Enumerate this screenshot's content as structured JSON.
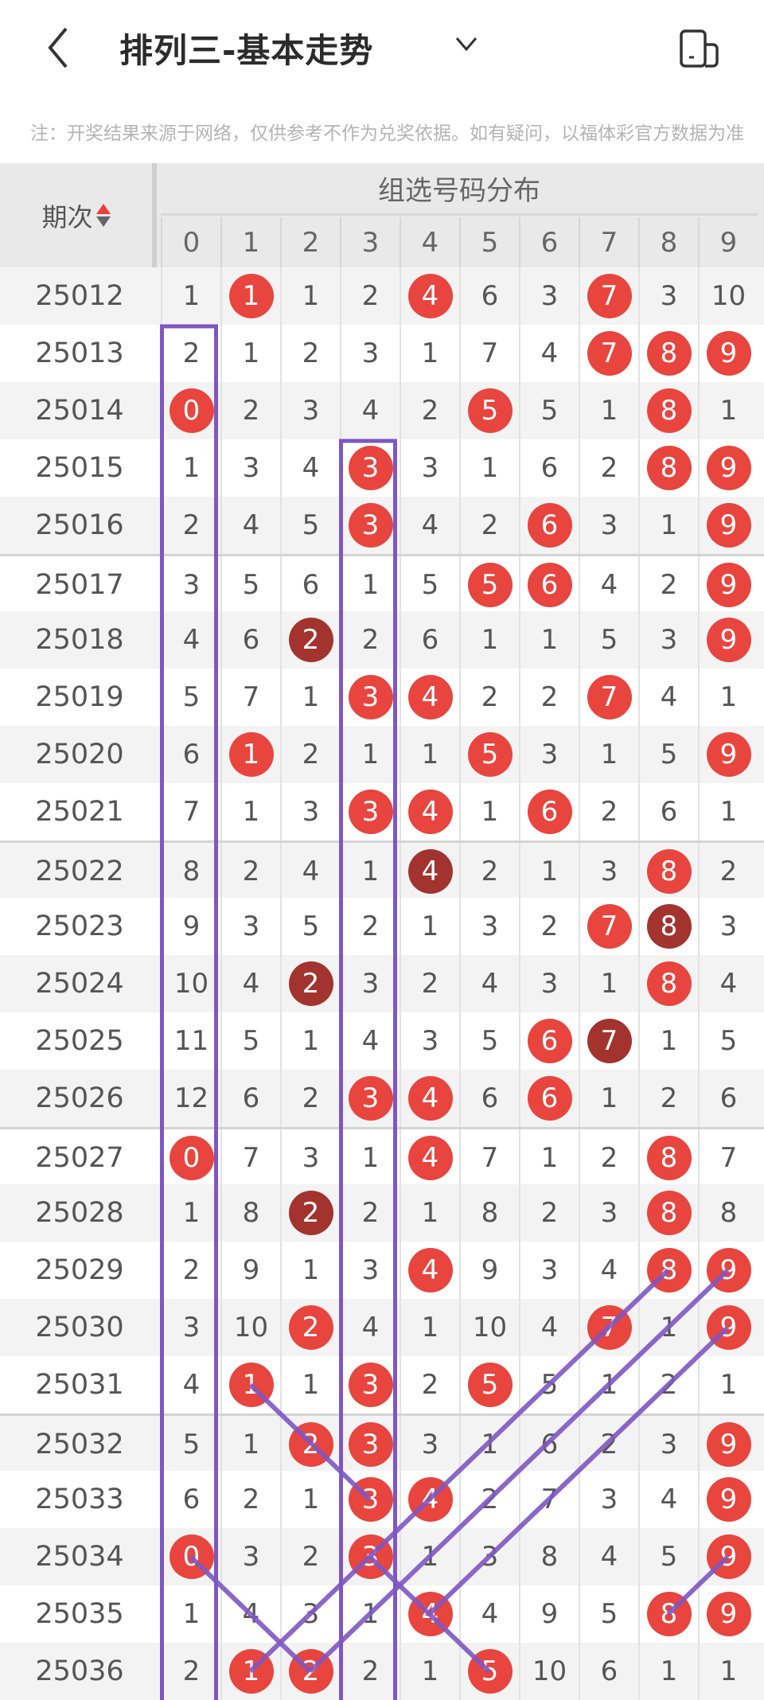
{
  "header": {
    "title": "排列三-基本走势",
    "back_icon": "chevron-left-icon",
    "dropdown_icon": "chevron-down-icon",
    "device_icon": "device-switch-icon"
  },
  "note": "注：开奖结果来源于网络，仅供参考不作为兑奖依据。如有疑问，以福体彩官方数据为准",
  "table": {
    "issue_header": "期次",
    "group_header": "组选号码分布",
    "digits": [
      "0",
      "1",
      "2",
      "3",
      "4",
      "5",
      "6",
      "7",
      "8",
      "9"
    ],
    "colors": {
      "hit": "#e8453f",
      "hit_dark": "#a3332e",
      "trend_line": "#7e57c2"
    },
    "rows": [
      {
        "issue": "25012",
        "cells": [
          "1",
          "1",
          "1",
          "2",
          "4",
          "6",
          "3",
          "7",
          "3",
          "10"
        ],
        "hits": [
          1,
          4,
          7
        ],
        "dark": []
      },
      {
        "issue": "25013",
        "cells": [
          "2",
          "1",
          "2",
          "3",
          "1",
          "7",
          "4",
          "7",
          "8",
          "9"
        ],
        "hits": [
          7,
          8,
          9
        ],
        "dark": []
      },
      {
        "issue": "25014",
        "cells": [
          "0",
          "2",
          "3",
          "4",
          "2",
          "5",
          "5",
          "1",
          "8",
          "1"
        ],
        "hits": [
          0,
          5,
          8
        ],
        "dark": []
      },
      {
        "issue": "25015",
        "cells": [
          "1",
          "3",
          "4",
          "3",
          "3",
          "1",
          "6",
          "2",
          "8",
          "9"
        ],
        "hits": [
          3,
          8,
          9
        ],
        "dark": []
      },
      {
        "issue": "25016",
        "cells": [
          "2",
          "4",
          "5",
          "3",
          "4",
          "2",
          "6",
          "3",
          "1",
          "9"
        ],
        "hits": [
          3,
          6,
          9
        ],
        "dark": []
      },
      {
        "issue": "25017",
        "cells": [
          "3",
          "5",
          "6",
          "1",
          "5",
          "5",
          "6",
          "4",
          "2",
          "9"
        ],
        "hits": [
          5,
          6,
          9
        ],
        "dark": []
      },
      {
        "issue": "25018",
        "cells": [
          "4",
          "6",
          "2",
          "2",
          "6",
          "1",
          "1",
          "5",
          "3",
          "9"
        ],
        "hits": [
          2,
          9
        ],
        "dark": [
          2
        ]
      },
      {
        "issue": "25019",
        "cells": [
          "5",
          "7",
          "1",
          "3",
          "4",
          "2",
          "2",
          "7",
          "4",
          "1"
        ],
        "hits": [
          3,
          4,
          7
        ],
        "dark": []
      },
      {
        "issue": "25020",
        "cells": [
          "6",
          "1",
          "2",
          "1",
          "1",
          "5",
          "3",
          "1",
          "5",
          "9"
        ],
        "hits": [
          1,
          5,
          9
        ],
        "dark": []
      },
      {
        "issue": "25021",
        "cells": [
          "7",
          "1",
          "3",
          "3",
          "4",
          "1",
          "6",
          "2",
          "6",
          "1"
        ],
        "hits": [
          3,
          4,
          6
        ],
        "dark": []
      },
      {
        "issue": "25022",
        "cells": [
          "8",
          "2",
          "4",
          "1",
          "4",
          "2",
          "1",
          "3",
          "8",
          "2"
        ],
        "hits": [
          4,
          8
        ],
        "dark": [
          4
        ]
      },
      {
        "issue": "25023",
        "cells": [
          "9",
          "3",
          "5",
          "2",
          "1",
          "3",
          "2",
          "7",
          "8",
          "3"
        ],
        "hits": [
          7,
          8
        ],
        "dark": [
          8
        ]
      },
      {
        "issue": "25024",
        "cells": [
          "10",
          "4",
          "2",
          "3",
          "2",
          "4",
          "3",
          "1",
          "8",
          "4"
        ],
        "hits": [
          2,
          8
        ],
        "dark": [
          2
        ]
      },
      {
        "issue": "25025",
        "cells": [
          "11",
          "5",
          "1",
          "4",
          "3",
          "5",
          "6",
          "7",
          "1",
          "5"
        ],
        "hits": [
          6,
          7
        ],
        "dark": [
          7
        ]
      },
      {
        "issue": "25026",
        "cells": [
          "12",
          "6",
          "2",
          "3",
          "4",
          "6",
          "6",
          "1",
          "2",
          "6"
        ],
        "hits": [
          3,
          4,
          6
        ],
        "dark": []
      },
      {
        "issue": "25027",
        "cells": [
          "0",
          "7",
          "3",
          "1",
          "4",
          "7",
          "1",
          "2",
          "8",
          "7"
        ],
        "hits": [
          0,
          4,
          8
        ],
        "dark": []
      },
      {
        "issue": "25028",
        "cells": [
          "1",
          "8",
          "2",
          "2",
          "1",
          "8",
          "2",
          "3",
          "8",
          "8"
        ],
        "hits": [
          2,
          8
        ],
        "dark": [
          2
        ]
      },
      {
        "issue": "25029",
        "cells": [
          "2",
          "9",
          "1",
          "3",
          "4",
          "9",
          "3",
          "4",
          "8",
          "9"
        ],
        "hits": [
          4,
          8,
          9
        ],
        "dark": []
      },
      {
        "issue": "25030",
        "cells": [
          "3",
          "10",
          "2",
          "4",
          "1",
          "10",
          "4",
          "7",
          "1",
          "9"
        ],
        "hits": [
          2,
          7,
          9
        ],
        "dark": []
      },
      {
        "issue": "25031",
        "cells": [
          "4",
          "1",
          "1",
          "3",
          "2",
          "5",
          "5",
          "1",
          "2",
          "1"
        ],
        "hits": [
          1,
          3,
          5
        ],
        "dark": []
      },
      {
        "issue": "25032",
        "cells": [
          "5",
          "1",
          "2",
          "3",
          "3",
          "1",
          "6",
          "2",
          "3",
          "9"
        ],
        "hits": [
          2,
          3,
          9
        ],
        "dark": []
      },
      {
        "issue": "25033",
        "cells": [
          "6",
          "2",
          "1",
          "3",
          "4",
          "2",
          "7",
          "3",
          "4",
          "9"
        ],
        "hits": [
          3,
          4,
          9
        ],
        "dark": []
      },
      {
        "issue": "25034",
        "cells": [
          "0",
          "3",
          "2",
          "3",
          "1",
          "3",
          "8",
          "4",
          "5",
          "9"
        ],
        "hits": [
          0,
          3,
          9
        ],
        "dark": []
      },
      {
        "issue": "25035",
        "cells": [
          "1",
          "4",
          "3",
          "1",
          "4",
          "4",
          "9",
          "5",
          "8",
          "9"
        ],
        "hits": [
          4,
          8,
          9
        ],
        "dark": []
      },
      {
        "issue": "25036",
        "cells": [
          "2",
          "1",
          "2",
          "2",
          "1",
          "5",
          "10",
          "6",
          "1",
          "1"
        ],
        "hits": [
          1,
          2,
          5
        ],
        "dark": []
      }
    ],
    "boxes": [
      {
        "digit": 0,
        "from": "25013",
        "to": "25036"
      },
      {
        "digit": 3,
        "from": "25015",
        "to": "25036"
      }
    ],
    "trend_lines": [
      [
        [
          "25031",
          1
        ],
        [
          "25032",
          2
        ],
        [
          "25033",
          3
        ]
      ],
      [
        [
          "25029",
          8
        ],
        [
          "25030",
          7
        ],
        [
          "25033",
          4
        ],
        [
          "25034",
          3
        ],
        [
          "25036",
          1
        ]
      ],
      [
        [
          "25029",
          9
        ],
        [
          "25036",
          2
        ]
      ],
      [
        [
          "25030",
          9
        ],
        [
          "25035",
          4
        ]
      ],
      [
        [
          "25034",
          0
        ],
        [
          "25036",
          2
        ]
      ],
      [
        [
          "25034",
          3
        ],
        [
          "25035",
          4
        ],
        [
          "25036",
          5
        ]
      ],
      [
        [
          "25034",
          9
        ],
        [
          "25035",
          8
        ]
      ]
    ]
  }
}
